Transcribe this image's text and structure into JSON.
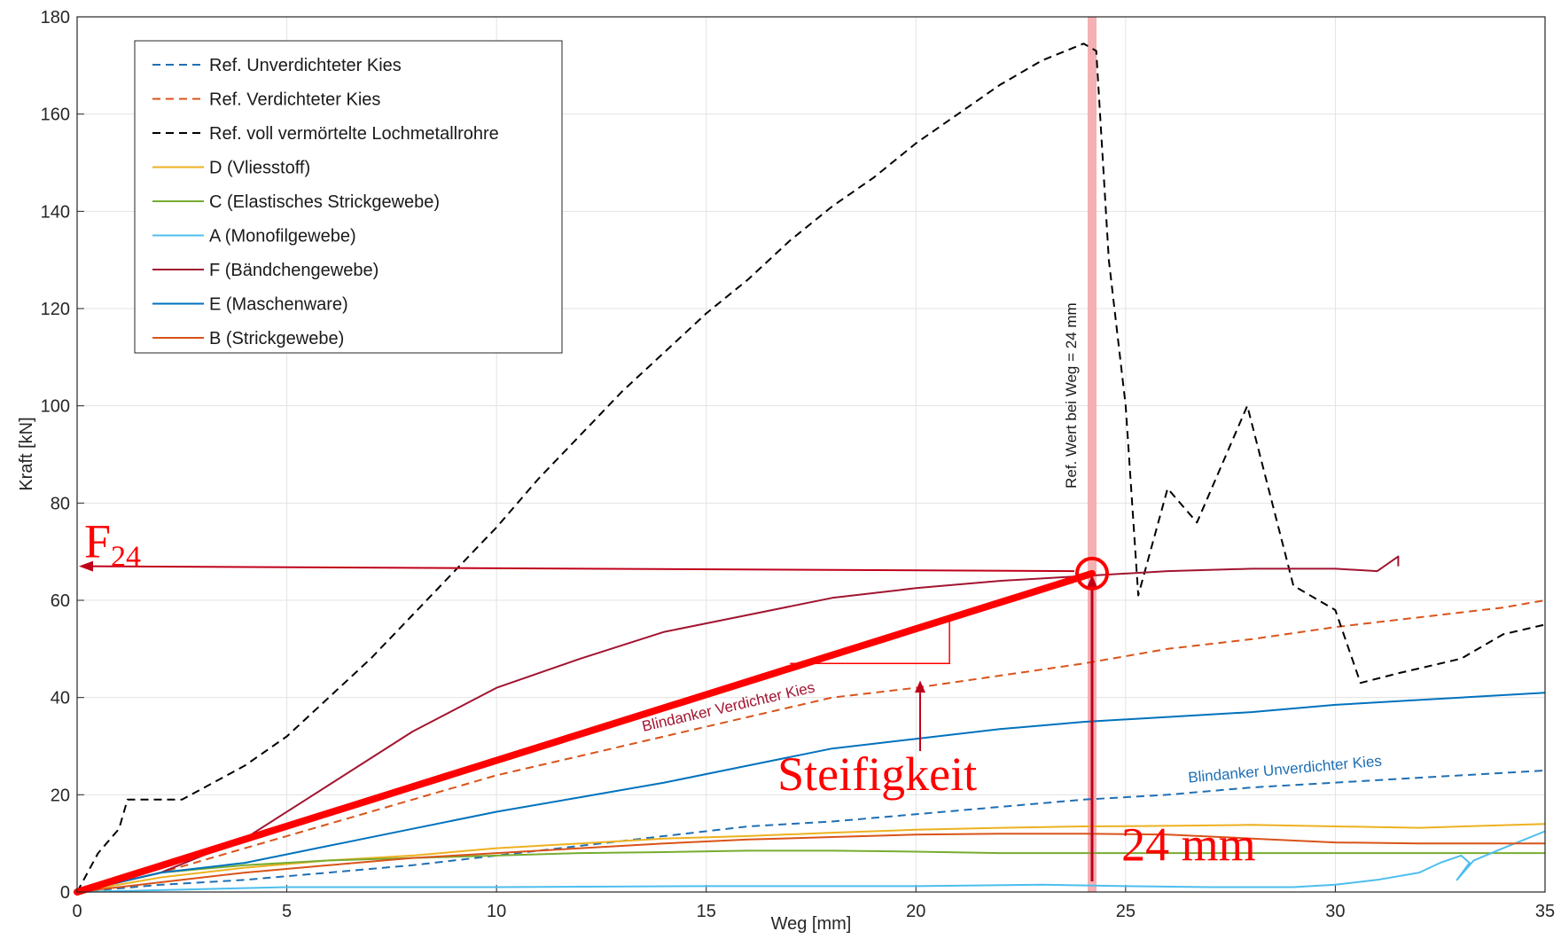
{
  "chart_data": {
    "type": "line",
    "xlabel": "Weg [mm]",
    "ylabel": "Kraft [kN]",
    "xlim": [
      0,
      35
    ],
    "ylim": [
      0,
      180
    ],
    "xticks": [
      0,
      5,
      10,
      15,
      20,
      25,
      30,
      35
    ],
    "yticks": [
      0,
      20,
      40,
      60,
      80,
      100,
      120,
      140,
      160,
      180
    ],
    "grid": true,
    "legend_position": "top-left",
    "series": [
      {
        "name": "Ref. Unverdichteter Kies",
        "color": "#1f6fb4",
        "dash": true,
        "x": [
          0,
          2,
          4,
          6,
          8,
          10,
          12,
          14,
          16,
          18,
          20,
          22,
          24,
          26,
          28,
          30,
          32,
          34,
          35
        ],
        "y": [
          0,
          1.5,
          2.5,
          4,
          5.5,
          7.5,
          9.5,
          11.5,
          13.5,
          14.5,
          16,
          17.5,
          19,
          20,
          21.5,
          22.5,
          23.5,
          24.5,
          25
        ]
      },
      {
        "name": "Ref. Verdichteter Kies",
        "color": "#d95319",
        "dash": true,
        "x": [
          0,
          2,
          4,
          6,
          8,
          10,
          12,
          14,
          16,
          18,
          20,
          22,
          24,
          26,
          28,
          30,
          32,
          34,
          35
        ],
        "y": [
          0,
          4,
          9,
          14,
          19,
          24,
          28,
          32,
          36,
          40,
          42,
          44.5,
          47,
          50,
          52,
          54.5,
          56.5,
          58.5,
          60
        ]
      },
      {
        "name": "Ref. voll vermörtelte Lochmetallrohre",
        "color": "#000000",
        "dash": true,
        "x": [
          0,
          0.5,
          1,
          1.2,
          2,
          2.5,
          4,
          5,
          6,
          7,
          8,
          9,
          10,
          11,
          12,
          13,
          14,
          15,
          16,
          17,
          18,
          19,
          20,
          21,
          22,
          23,
          24,
          24.3,
          24.6,
          25,
          25.3,
          26,
          26.7,
          27.9,
          29,
          30,
          30.6,
          31.5,
          32,
          33,
          34,
          35
        ],
        "y": [
          0,
          8,
          13,
          19,
          19,
          19,
          26,
          32,
          40,
          48,
          57,
          66,
          75,
          85,
          94,
          103,
          111,
          119,
          126,
          134,
          141,
          147,
          154,
          160,
          166,
          171,
          174.5,
          173,
          130,
          100,
          61,
          83,
          76,
          100,
          63,
          58,
          43,
          45,
          46,
          48,
          53,
          55
        ]
      },
      {
        "name": "D (Vliesstoff)",
        "color": "#edb120",
        "dash": false,
        "x": [
          0,
          2,
          4,
          6,
          8,
          10,
          12,
          14,
          16,
          18,
          20,
          22,
          24,
          26,
          28,
          30,
          32,
          35
        ],
        "y": [
          0,
          3,
          5,
          6.5,
          7.5,
          9,
          10,
          11,
          11.5,
          12.2,
          12.8,
          13.2,
          13.5,
          13.6,
          13.8,
          13.5,
          13.2,
          14
        ]
      },
      {
        "name": "C (Elastisches Strickgewebe)",
        "color": "#77ac30",
        "dash": false,
        "x": [
          0,
          2,
          4,
          6,
          8,
          10,
          12,
          14,
          16,
          18,
          20,
          22,
          24,
          26,
          28,
          30,
          32,
          35
        ],
        "y": [
          0,
          4,
          5.5,
          6.5,
          7,
          7.5,
          8,
          8.2,
          8.5,
          8.5,
          8.3,
          8,
          8,
          8,
          8,
          8,
          8,
          8
        ]
      },
      {
        "name": "A (Monofilgewebe)",
        "color": "#4dbeee",
        "dash": false,
        "x": [
          0,
          5,
          10,
          15,
          20,
          23,
          25,
          27,
          29,
          30,
          31,
          32,
          32.5,
          33,
          33.2,
          32.9,
          33.3,
          34,
          35
        ],
        "y": [
          0,
          1,
          1,
          1.2,
          1.2,
          1.5,
          1.2,
          1,
          1,
          1.5,
          2.5,
          4,
          6,
          7.5,
          6,
          2.5,
          6.5,
          9,
          12.5
        ]
      },
      {
        "name": "F (Bändchengewebe)",
        "color": "#a2142f",
        "dash": false,
        "x": [
          0,
          2,
          4,
          6,
          8,
          10,
          12,
          14,
          16,
          18,
          20,
          22,
          24,
          26,
          28,
          30,
          31,
          31.5,
          31.5
        ],
        "y": [
          0,
          4,
          11,
          22,
          33,
          42,
          48,
          53.5,
          57,
          60.5,
          62.5,
          64,
          65,
          66,
          66.5,
          66.5,
          66,
          69,
          67
        ]
      },
      {
        "name": "E (Maschenware)",
        "color": "#0072bd",
        "dash": false,
        "x": [
          0,
          2,
          4,
          6,
          8,
          10,
          12,
          14,
          16,
          18,
          20,
          22,
          24,
          26,
          28,
          30,
          32,
          35
        ],
        "y": [
          0,
          4,
          6,
          9.5,
          13,
          16.5,
          19.5,
          22.5,
          26,
          29.5,
          31.5,
          33.5,
          35,
          36,
          37,
          38.5,
          39.5,
          41
        ]
      },
      {
        "name": "B (Strickgewebe)",
        "color": "#d95319",
        "dash": false,
        "x": [
          0,
          2,
          4,
          6,
          8,
          10,
          12,
          14,
          16,
          18,
          20,
          22,
          24,
          26,
          28,
          30,
          32,
          35
        ],
        "y": [
          0,
          2,
          4,
          5.5,
          7,
          8,
          9,
          10,
          10.8,
          11.3,
          11.8,
          12,
          12,
          11.8,
          11,
          10.2,
          10,
          10
        ]
      }
    ],
    "annotations": {
      "vertical_band_label": "Ref. Wert  bei Weg = 24 mm",
      "band_x": 24.2,
      "f24_label_main": "F",
      "f24_label_sub": "24",
      "f24_value": 67,
      "secant_from": [
        0,
        0
      ],
      "secant_to": [
        24.2,
        65.5
      ],
      "stiffness_label": "Steifigkeit",
      "distance_label": "24 mm",
      "blindanker_verdichter": "Blindanker Verdichter Kies",
      "blindanker_unverdichter": "Blindanker Unverdichter Kies",
      "highlight_color": "#ff0000",
      "band_color": "#f4a7ab"
    }
  }
}
